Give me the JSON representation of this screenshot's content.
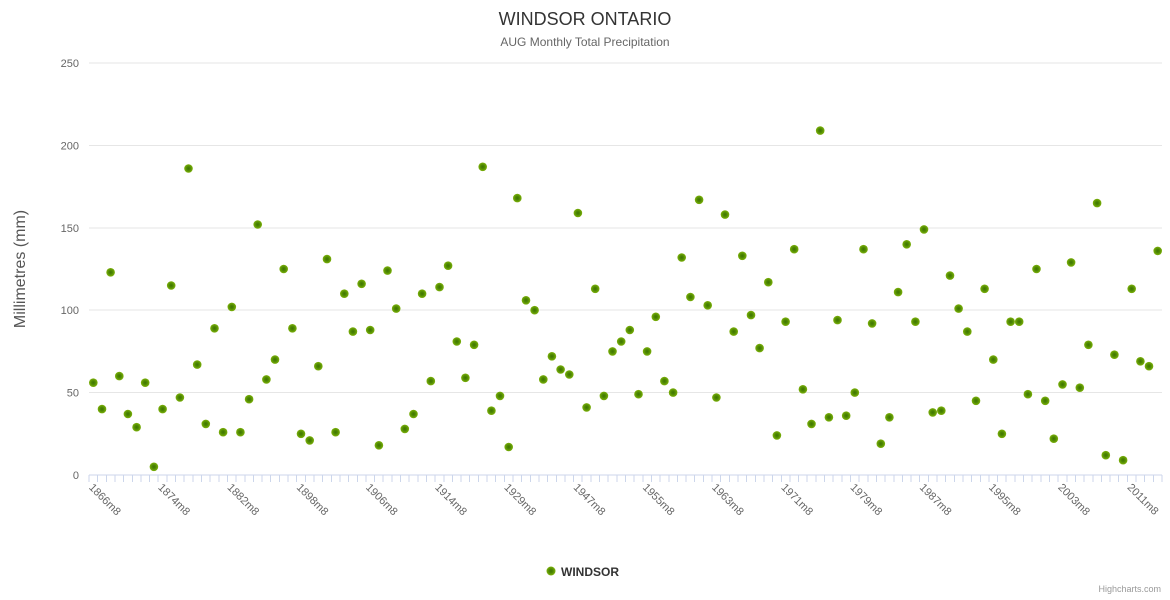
{
  "header": {
    "title": "WINDSOR ONTARIO",
    "subtitle": "AUG Monthly Total Precipitation"
  },
  "legend": {
    "label": "WINDSOR"
  },
  "credits": {
    "label": "Highcharts.com"
  },
  "colors": {
    "point_outer": "#7db10b",
    "point_mid": "#4f8a02",
    "point_core": "#3f7301",
    "grid": "#e6e6e6",
    "axis": "#ccd6eb",
    "title_text": "#333333",
    "muted_text": "#666666",
    "credits_text": "#999999"
  },
  "chart_data": {
    "type": "scatter",
    "title": "WINDSOR ONTARIO",
    "subtitle": "AUG Monthly Total Precipitation",
    "ylabel": "Millimetres (mm)",
    "ylim": [
      0,
      250
    ],
    "y_ticks": [
      0,
      50,
      100,
      150,
      200,
      250
    ],
    "grid": "horizontal-only",
    "legend_position": "bottom-center",
    "n_points": 124,
    "x_tick_every": 8,
    "x_tick_labels": [
      "1866m8",
      "1874m8",
      "1882m8",
      "1898m8",
      "1906m8",
      "1914m8",
      "1929m8",
      "1947m8",
      "1955m8",
      "1963m8",
      "1971m8",
      "1979m8",
      "1987m8",
      "1995m8",
      "2003m8",
      "2011m8"
    ],
    "series": [
      {
        "name": "WINDSOR",
        "values": [
          56,
          40,
          123,
          60,
          37,
          29,
          56,
          5,
          40,
          115,
          47,
          186,
          67,
          31,
          89,
          26,
          102,
          26,
          46,
          152,
          58,
          70,
          125,
          89,
          25,
          21,
          66,
          131,
          26,
          110,
          87,
          116,
          88,
          18,
          124,
          101,
          28,
          37,
          110,
          57,
          114,
          127,
          81,
          59,
          79,
          187,
          39,
          48,
          17,
          168,
          106,
          100,
          58,
          72,
          64,
          61,
          159,
          41,
          113,
          48,
          75,
          81,
          88,
          49,
          75,
          96,
          57,
          50,
          132,
          108,
          167,
          103,
          47,
          158,
          87,
          133,
          97,
          77,
          117,
          24,
          93,
          137,
          52,
          31,
          209,
          35,
          94,
          36,
          50,
          137,
          92,
          19,
          35,
          111,
          140,
          93,
          149,
          38,
          39,
          121,
          101,
          87,
          45,
          113,
          70,
          25,
          93,
          93,
          49,
          125,
          45,
          22,
          55,
          129,
          53,
          79,
          165,
          12,
          73,
          9,
          113,
          69,
          66,
          136
        ]
      }
    ]
  }
}
